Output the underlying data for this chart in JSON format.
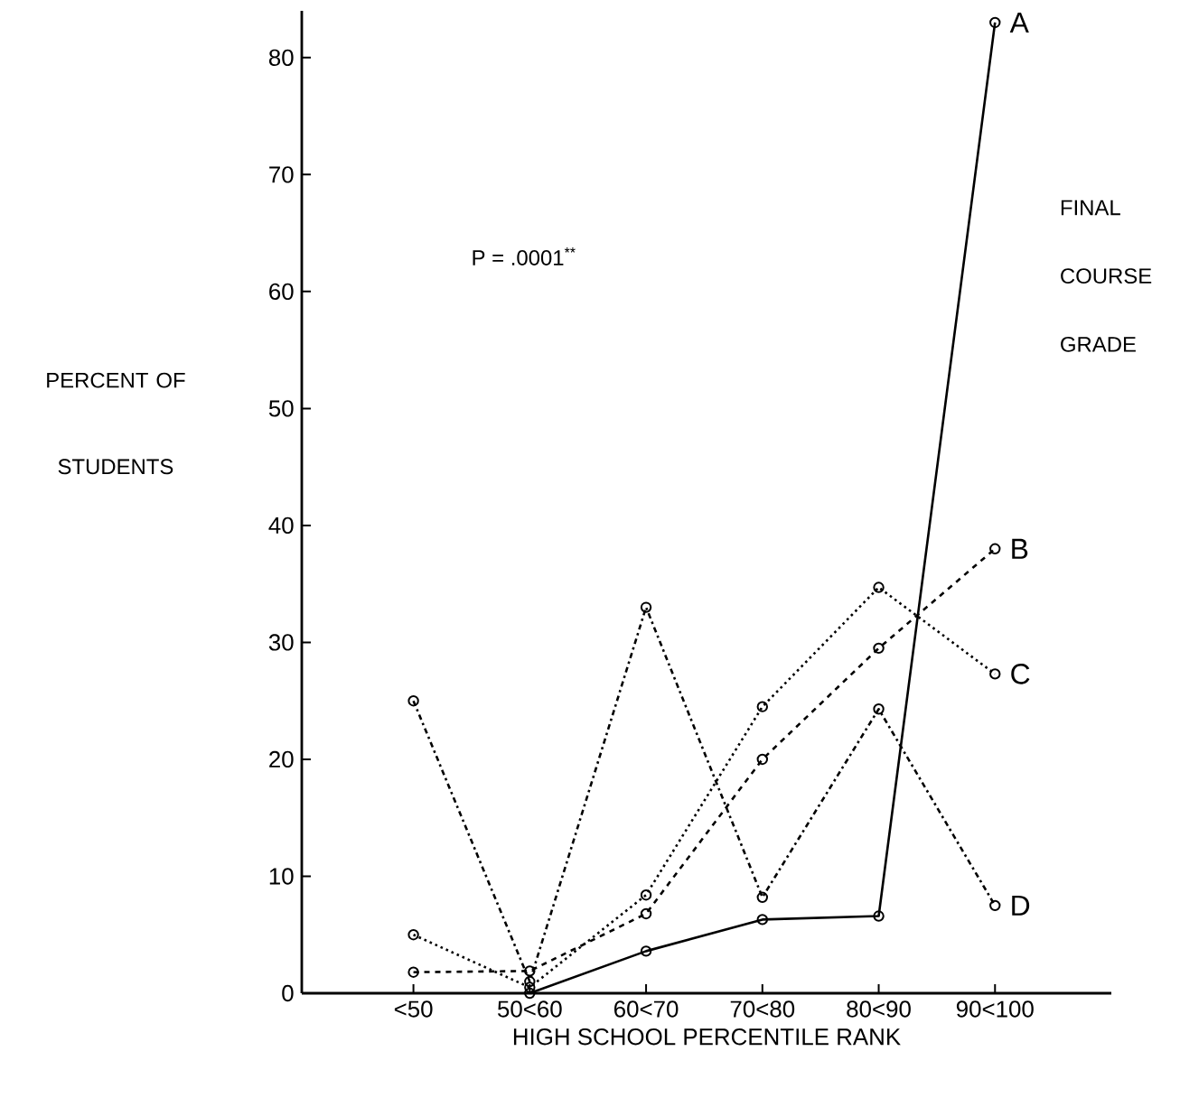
{
  "chart_data": {
    "type": "line",
    "categories": [
      "<50",
      "50<60",
      "60<70",
      "70<80",
      "80<90",
      "90<100"
    ],
    "xlabel": "HIGH SCHOOL PERCENTILE RANK",
    "ylabel": "PERCENT OF STUDENTS",
    "legend_title": "FINAL COURSE GRADE",
    "annotations": [
      "P = .0001$^{**}$"
    ],
    "ylim": [
      0,
      84
    ],
    "yticks": [
      0,
      10,
      20,
      30,
      40,
      50,
      60,
      70,
      80
    ],
    "marker": "circle",
    "series": [
      {
        "name": "A",
        "color": "#000000",
        "line_style": "solid",
        "values": [
          null,
          0,
          3.6,
          6.3,
          6.6,
          83
        ]
      },
      {
        "name": "B",
        "color": "#000000",
        "line_style": "dashed",
        "values": [
          1.8,
          1.9,
          6.8,
          20,
          29.5,
          38
        ]
      },
      {
        "name": "C",
        "color": "#000000",
        "line_style": "dotted",
        "values": [
          5,
          0.5,
          8.4,
          24.5,
          34.7,
          27.3
        ]
      },
      {
        "name": "D",
        "color": "#000000",
        "line_style": "dashdot",
        "values": [
          25,
          1,
          33,
          8.2,
          24.3,
          7.5
        ]
      }
    ]
  }
}
